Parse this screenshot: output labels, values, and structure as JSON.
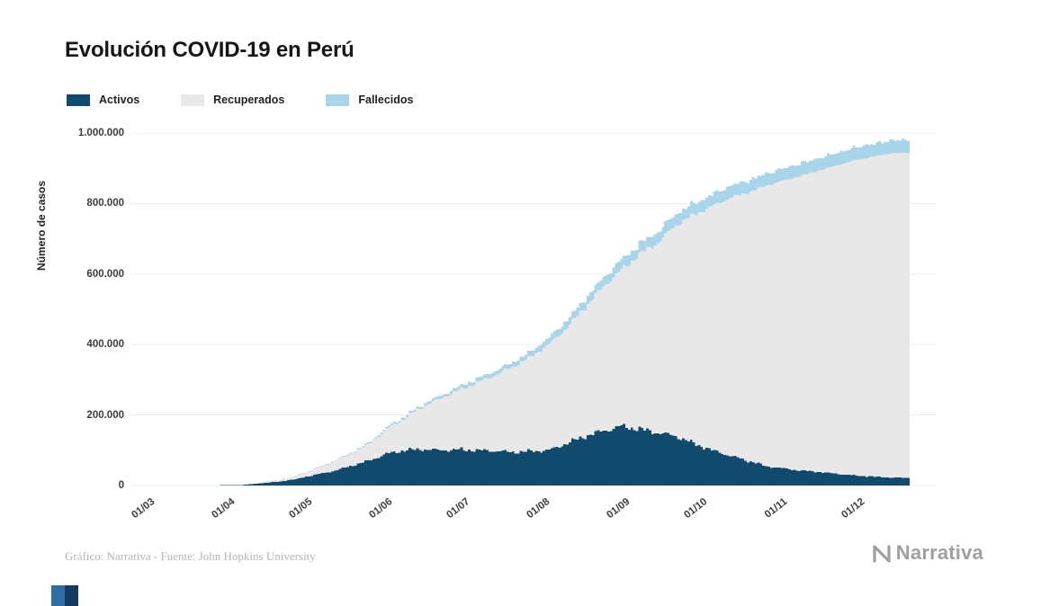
{
  "title": "Evolución COVID-19 en Perú",
  "legend": [
    {
      "label": "Activos",
      "color": "#124a6e"
    },
    {
      "label": "Recuperados",
      "color": "#e8e8e8"
    },
    {
      "label": "Fallecidos",
      "color": "#a8d5ea"
    }
  ],
  "footer": {
    "credit": "Gráfico: Narrativa - Fuente: John Hopkins University",
    "brand": "Narrativa"
  },
  "colors": {
    "grid": "#ececec",
    "title_text": "#161616",
    "tick_text": "#3c3c3c",
    "credit_text": "#b5b5b5",
    "brand_text": "#a0a0a0",
    "corner_blue": "#2f6fa6",
    "corner_navy": "#153a5e"
  },
  "chart_data": {
    "type": "area",
    "stacked": true,
    "title": "Evolución COVID-19 en Perú",
    "xlabel": "",
    "ylabel": "Número de casos",
    "ylim": [
      0,
      1000000
    ],
    "grid": true,
    "legend_position": "top-left",
    "y_ticks": [
      0,
      200000,
      400000,
      600000,
      800000,
      1000000
    ],
    "y_tick_labels": [
      "0",
      "200.000",
      "400.000",
      "600.000",
      "800.000",
      "1.000.000"
    ],
    "x_tick_labels": [
      "01/03",
      "01/04",
      "01/05",
      "01/06",
      "01/07",
      "01/08",
      "01/09",
      "01/10",
      "01/11",
      "01/12"
    ],
    "x_tick_day_offsets": [
      0,
      31,
      61,
      92,
      122,
      153,
      184,
      214,
      245,
      275
    ],
    "x": [
      "01/03",
      "08/03",
      "15/03",
      "22/03",
      "29/03",
      "05/04",
      "12/04",
      "19/04",
      "26/04",
      "03/05",
      "10/05",
      "17/05",
      "24/05",
      "31/05",
      "07/06",
      "14/06",
      "21/06",
      "28/06",
      "05/07",
      "12/07",
      "19/07",
      "26/07",
      "02/08",
      "09/08",
      "16/08",
      "23/08",
      "30/08",
      "06/09",
      "13/09",
      "20/09",
      "27/09",
      "04/10",
      "11/10",
      "18/10",
      "25/10",
      "01/11",
      "08/11",
      "15/11",
      "22/11",
      "29/11",
      "06/12",
      "13/12"
    ],
    "series": [
      {
        "name": "Activos",
        "color": "#124a6e",
        "values": [
          0,
          20,
          90,
          350,
          750,
          1700,
          6000,
          11000,
          18000,
          30000,
          40000,
          55000,
          70000,
          90000,
          100000,
          103000,
          100000,
          102000,
          100000,
          98000,
          95000,
          97000,
          100000,
          120000,
          140000,
          155000,
          168000,
          160000,
          150000,
          140000,
          120000,
          100000,
          85000,
          70000,
          55000,
          48000,
          42000,
          38000,
          33000,
          28000,
          25000,
          22000
        ]
      },
      {
        "name": "Recuperados",
        "color": "#e8e8e8",
        "values": [
          0,
          0,
          10,
          45,
          120,
          220,
          1310,
          4100,
          8800,
          15700,
          25100,
          34200,
          46500,
          69500,
          90500,
          120500,
          147000,
          168700,
          191500,
          215200,
          242000,
          268000,
          300500,
          329000,
          367000,
          409500,
          444000,
          495500,
          539500,
          598500,
          647800,
          692200,
          731700,
          761200,
          795800,
          817500,
          838100,
          856800,
          876500,
          896100,
          908800,
          921400
        ]
      },
      {
        "name": "Fallecidos",
        "color": "#a8d5ea",
        "values": [
          0,
          0,
          0,
          5,
          30,
          80,
          190,
          400,
          700,
          1300,
          1900,
          2800,
          3500,
          4500,
          5500,
          6500,
          8000,
          9300,
          10500,
          11800,
          13000,
          15000,
          19500,
          21000,
          23000,
          25500,
          28000,
          29500,
          30500,
          31500,
          32200,
          32800,
          33300,
          33800,
          34200,
          34500,
          34900,
          35200,
          35500,
          35900,
          36200,
          36600
        ]
      }
    ]
  }
}
